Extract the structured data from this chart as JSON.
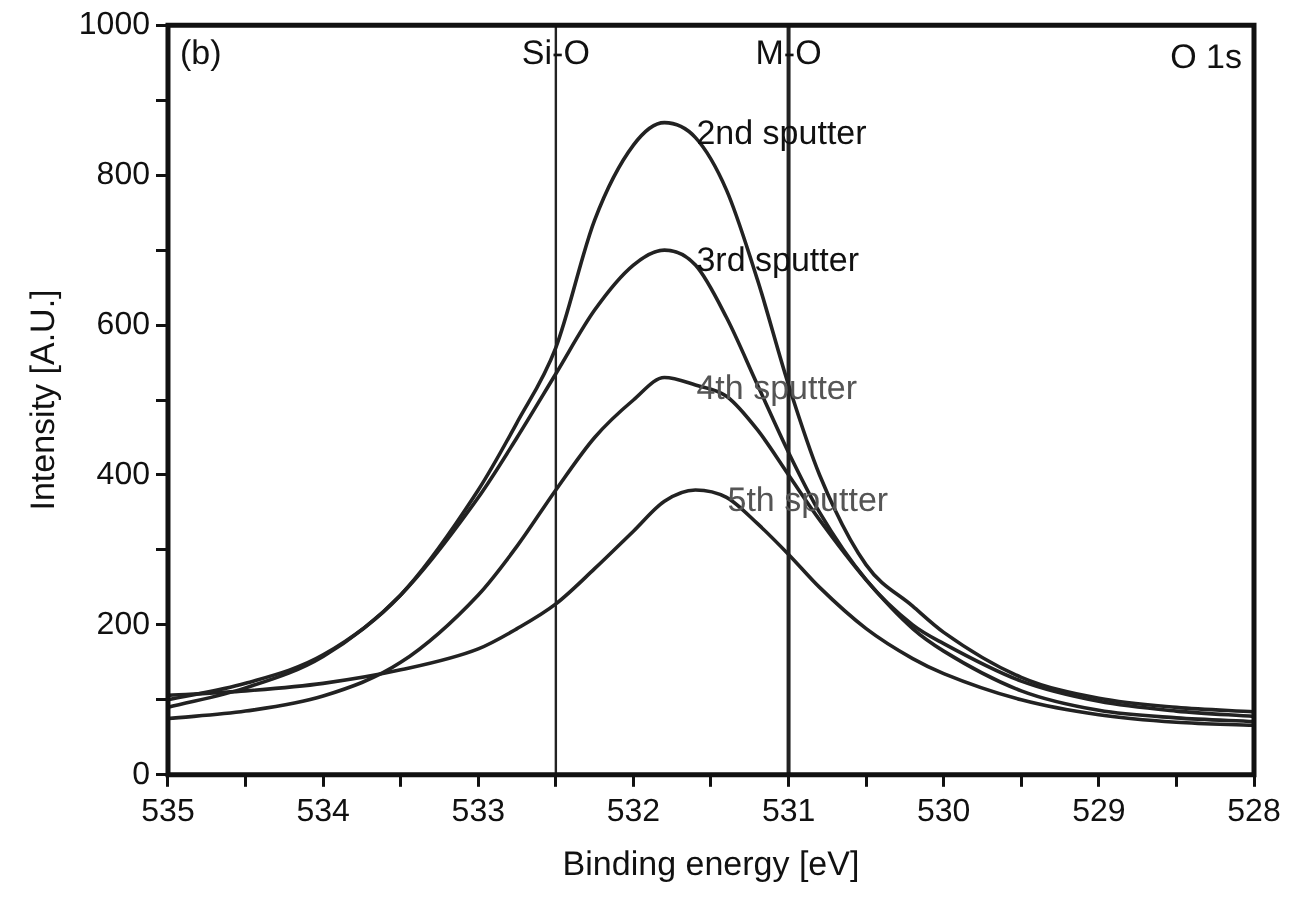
{
  "chart_data": {
    "type": "line",
    "xlabel": "Binding energy [eV]",
    "ylabel": "Intensity [A.U.]",
    "x": [
      535,
      534.5,
      534,
      533.5,
      533,
      532.75,
      532.5,
      532.25,
      532,
      531.8,
      531.6,
      531.4,
      531.2,
      531,
      530.8,
      530.5,
      530.2,
      530,
      529.5,
      529,
      528.5,
      528
    ],
    "series": [
      {
        "name": "2nd sputter",
        "color": "#222222",
        "values": [
          100,
          122,
          160,
          240,
          380,
          470,
          570,
          740,
          840,
          870,
          850,
          780,
          660,
          520,
          400,
          280,
          225,
          190,
          130,
          102,
          90,
          84
        ]
      },
      {
        "name": "3rd sputter",
        "color": "#222222",
        "values": [
          90,
          116,
          158,
          240,
          370,
          450,
          535,
          620,
          680,
          700,
          680,
          610,
          520,
          430,
          350,
          260,
          200,
          175,
          125,
          98,
          85,
          78
        ]
      },
      {
        "name": "4th sputter",
        "color": "#222222",
        "values": [
          75,
          85,
          105,
          150,
          240,
          305,
          380,
          450,
          500,
          530,
          520,
          505,
          460,
          400,
          340,
          260,
          195,
          165,
          112,
          86,
          76,
          71
        ]
      },
      {
        "name": "5th sputter",
        "color": "#222222",
        "values": [
          106,
          112,
          122,
          140,
          168,
          195,
          228,
          275,
          325,
          365,
          380,
          370,
          335,
          294,
          250,
          195,
          155,
          135,
          100,
          80,
          70,
          66
        ]
      }
    ],
    "xlim": [
      535,
      528
    ],
    "xticks": [
      535,
      {
        "value": 534.5,
        "label": null
      },
      534,
      {
        "value": 533.5,
        "label": null
      },
      533,
      {
        "value": 532.5,
        "label": null
      },
      532,
      {
        "value": 531.5,
        "label": null
      },
      531,
      {
        "value": 530.5,
        "label": null
      },
      530,
      {
        "value": 529.5,
        "label": null
      },
      529,
      {
        "value": 528.5,
        "label": null
      },
      528
    ],
    "ylim": [
      0,
      1000
    ],
    "yticks": [
      0,
      {
        "value": 100,
        "label": null
      },
      200,
      {
        "value": 300,
        "label": null
      },
      400,
      {
        "value": 500,
        "label": null
      },
      600,
      {
        "value": 700,
        "label": null
      },
      800,
      {
        "value": 900,
        "label": null
      },
      1000
    ],
    "ref_lines": [
      {
        "axis": "x",
        "value": 532.5,
        "label": "Si-O",
        "color": "#222222"
      },
      {
        "axis": "x",
        "value": 531,
        "label": "M-O",
        "color": "#222222"
      }
    ],
    "annotations": [
      "(b)",
      "O 1s"
    ],
    "grid": false,
    "legend": false,
    "marker": "none",
    "line_style": "solid"
  }
}
